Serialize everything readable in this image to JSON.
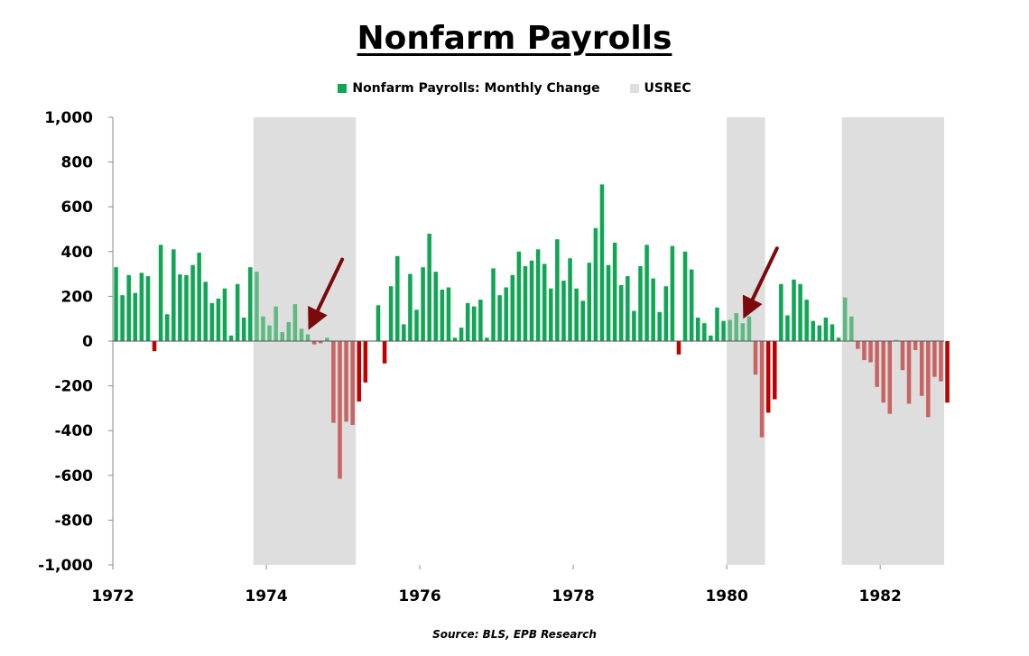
{
  "title": "Nonfarm Payrolls",
  "source": "Source: BLS, EPB Research",
  "legend": {
    "series_label": "Nonfarm Payrolls: Monthly Change",
    "recession_label": "USREC"
  },
  "colors": {
    "positive": "#0fa654",
    "negative": "#c00000",
    "positive_in_recession": "#5fba82",
    "negative_in_recession": "#c86464",
    "recession_shade": "#dedede",
    "arrow": "#7b0a0a"
  },
  "chart_data": {
    "type": "bar",
    "title": "Nonfarm Payrolls",
    "xlabel": "",
    "ylabel": "",
    "ylim": [
      -1000,
      1000
    ],
    "xlim": [
      "1972-01",
      "1982-10"
    ],
    "y_ticks": [
      1000,
      800,
      600,
      400,
      200,
      0,
      -200,
      -400,
      -600,
      -800,
      -1000
    ],
    "y_tick_labels": [
      "1,000",
      "800",
      "600",
      "400",
      "200",
      "0",
      "-200",
      "-400",
      "-600",
      "-800",
      "-1,000"
    ],
    "x_ticks": [
      "1972-01",
      "1974-01",
      "1976-01",
      "1978-01",
      "1980-01",
      "1982-01"
    ],
    "x_tick_labels": [
      "1972",
      "1974",
      "1976",
      "1978",
      "1980",
      "1982"
    ],
    "grid": false,
    "legend_position": "top-center",
    "series": [
      {
        "name": "Nonfarm Payrolls: Monthly Change",
        "start": "1972-01",
        "frequency": "monthly",
        "values": [
          330,
          205,
          295,
          215,
          305,
          290,
          -45,
          430,
          120,
          410,
          298,
          295,
          340,
          395,
          265,
          170,
          190,
          235,
          25,
          255,
          105,
          330,
          310,
          110,
          70,
          155,
          40,
          85,
          165,
          55,
          30,
          -15,
          -10,
          15,
          -365,
          -615,
          -360,
          -375,
          -270,
          -185,
          0,
          160,
          -100,
          245,
          380,
          75,
          300,
          140,
          330,
          480,
          310,
          230,
          240,
          15,
          60,
          170,
          155,
          185,
          15,
          325,
          205,
          240,
          295,
          400,
          335,
          360,
          410,
          345,
          235,
          455,
          270,
          370,
          235,
          180,
          350,
          505,
          700,
          340,
          440,
          250,
          290,
          135,
          335,
          430,
          280,
          130,
          245,
          425,
          -60,
          400,
          320,
          105,
          80,
          25,
          150,
          90,
          95,
          125,
          80,
          110,
          -150,
          -430,
          -320,
          -260,
          255,
          115,
          275,
          255,
          185,
          90,
          70,
          105,
          75,
          15,
          195,
          110,
          -35,
          -85,
          -95,
          -205,
          -275,
          -325,
          5,
          -130,
          -280,
          -40,
          -245,
          -340,
          -160,
          -180,
          -275
        ]
      }
    ],
    "recessions": [
      {
        "start": "1973-11",
        "end": "1975-03"
      },
      {
        "start": "1980-01",
        "end": "1980-07"
      },
      {
        "start": "1981-07",
        "end": "1982-11"
      }
    ],
    "annotations": [
      {
        "type": "arrow",
        "target_date": "1974-07"
      },
      {
        "type": "arrow",
        "target_date": "1980-03"
      }
    ]
  }
}
